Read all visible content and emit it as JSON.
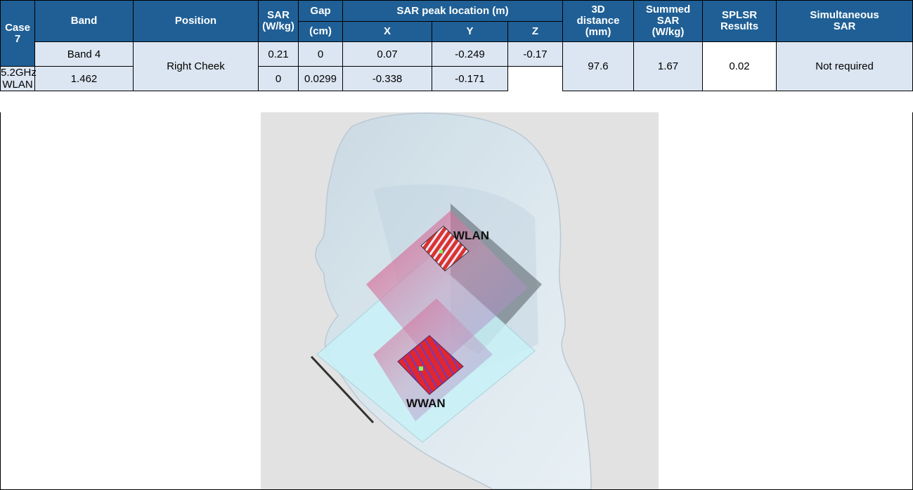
{
  "table": {
    "case_label": "Case 7",
    "headers": {
      "band": "Band",
      "position": "Position",
      "sar_line1": "SAR",
      "sar_line2": "(W/kg)",
      "gap": "Gap",
      "gap_unit": "(cm)",
      "peak_location": "SAR peak location (m)",
      "x": "X",
      "y": "Y",
      "z": "Z",
      "distance_line1": "3D",
      "distance_line2": "distance",
      "distance_line3": "(mm)",
      "summed_line1": "Summed",
      "summed_line2": "SAR",
      "summed_line3": "(W/kg)",
      "splsr_line1": "SPLSR",
      "splsr_line2": "Results",
      "simul_line1": "Simultaneous",
      "simul_line2": "SAR"
    },
    "rows": [
      {
        "band": "Band 4",
        "sar": "0.21",
        "gap": "0",
        "x": "0.07",
        "y": "-0.249",
        "z": "-0.17"
      },
      {
        "band": "5.2GHz WLAN",
        "sar": "1.462",
        "gap": "0",
        "x": "0.0299",
        "y": "-0.338",
        "z": "-0.171"
      }
    ],
    "position": "Right Cheek",
    "distance": "97.6",
    "summed_sar": "1.67",
    "splsr": "0.02",
    "simultaneous": "Not required"
  },
  "figure": {
    "label_wlan": "WLAN",
    "label_wwan": "WWAN"
  }
}
